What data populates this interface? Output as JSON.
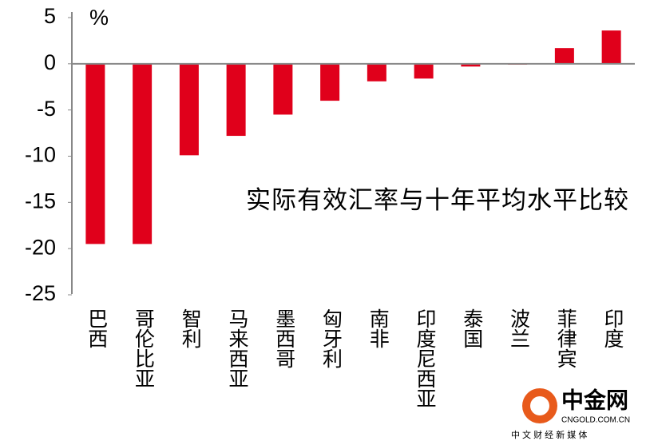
{
  "chart_data": {
    "type": "bar",
    "unit_label": "%",
    "annotation": "实际有效汇率与十年平均水平比较",
    "categories": [
      "巴西",
      "哥伦比亚",
      "智利",
      "马来西亚",
      "墨西哥",
      "匈牙利",
      "南非",
      "印度尼西亚",
      "泰国",
      "波兰",
      "菲律宾",
      "印度"
    ],
    "values": [
      -19.5,
      -19.5,
      -9.9,
      -7.8,
      -5.5,
      -4.0,
      -1.9,
      -1.6,
      -0.3,
      -0.1,
      1.7,
      3.6
    ],
    "color": "#e0001b",
    "ylim": [
      -25,
      5
    ],
    "yticks": [
      -25,
      -20,
      -15,
      -10,
      -5,
      0,
      5
    ],
    "grid": false
  },
  "watermark": {
    "name": "中金网",
    "site": "CNGOLD.COM.CN",
    "slogan": "中 文 财 经 新 媒 体"
  }
}
